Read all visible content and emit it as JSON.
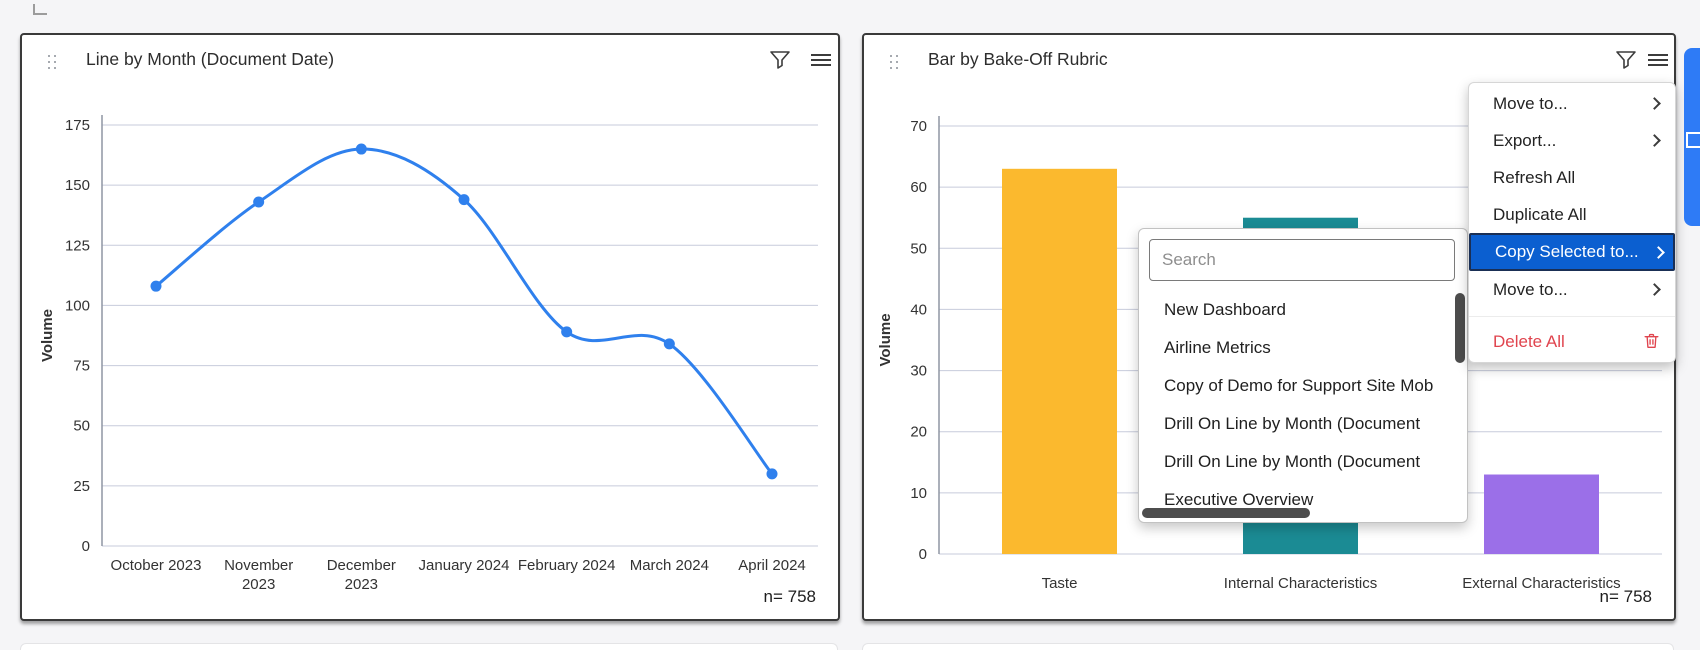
{
  "theme": {
    "page_bg": "#f5f5f7",
    "grid_color": "#c7cbdb",
    "axis_color": "#8f96a3",
    "menu_highlight": "#0b5fd0",
    "danger_color": "#e0444e",
    "edge_bar_color": "#2e7bf6"
  },
  "line_card": {
    "title": "Line by Month (Document Date)",
    "sample_label": "n= 758"
  },
  "bar_card": {
    "title": "Bar by Bake-Off Rubric",
    "sample_label": "n= 758"
  },
  "context_menu": {
    "items": [
      {
        "label": "Move to...",
        "submenu": true
      },
      {
        "label": "Export...",
        "submenu": true
      },
      {
        "label": "Refresh All"
      },
      {
        "label": "Duplicate All"
      },
      {
        "label": "Copy Selected to...",
        "submenu": true,
        "selected": true
      },
      {
        "label": "Move to...",
        "submenu": true
      },
      {
        "label": "Delete All",
        "danger": true,
        "icon": "trash-icon",
        "separator_before": true
      }
    ]
  },
  "dashboard_picker": {
    "search_placeholder": "Search",
    "options": [
      "New Dashboard",
      "Airline Metrics",
      "Copy of Demo for Support Site Mob",
      "Drill On Line by Month (Document",
      "Drill On Line by Month (Document",
      "Executive Overview"
    ]
  },
  "chart_data": [
    {
      "type": "line",
      "title": "Line by Month (Document Date)",
      "x": [
        "October 2023",
        "November 2023",
        "December 2023",
        "January 2024",
        "February 2024",
        "March 2024",
        "April 2024"
      ],
      "values": [
        108,
        143,
        165,
        144,
        89,
        84,
        30
      ],
      "wrapped_labels": [
        "November 2023",
        "December 2023"
      ],
      "ylabel": "Volume",
      "ylim": [
        0,
        175
      ],
      "yticks": [
        0,
        25,
        50,
        75,
        100,
        125,
        150,
        175
      ],
      "line_color": "#2f80ed",
      "grid": true,
      "legend": "none",
      "n_label": "n= 758"
    },
    {
      "type": "bar",
      "title": "Bar by Bake-Off Rubric",
      "categories": [
        "Taste",
        "Internal Characteristics",
        "External Characteristics"
      ],
      "values": [
        63,
        55,
        13
      ],
      "colors": [
        "#fbb92e",
        "#1b8b94",
        "#9b6fe8"
      ],
      "ylabel": "Volume",
      "ylim": [
        0,
        70
      ],
      "yticks": [
        0,
        10,
        20,
        30,
        40,
        50,
        60,
        70
      ],
      "grid": true,
      "legend": "none",
      "n_label": "n= 758"
    }
  ]
}
